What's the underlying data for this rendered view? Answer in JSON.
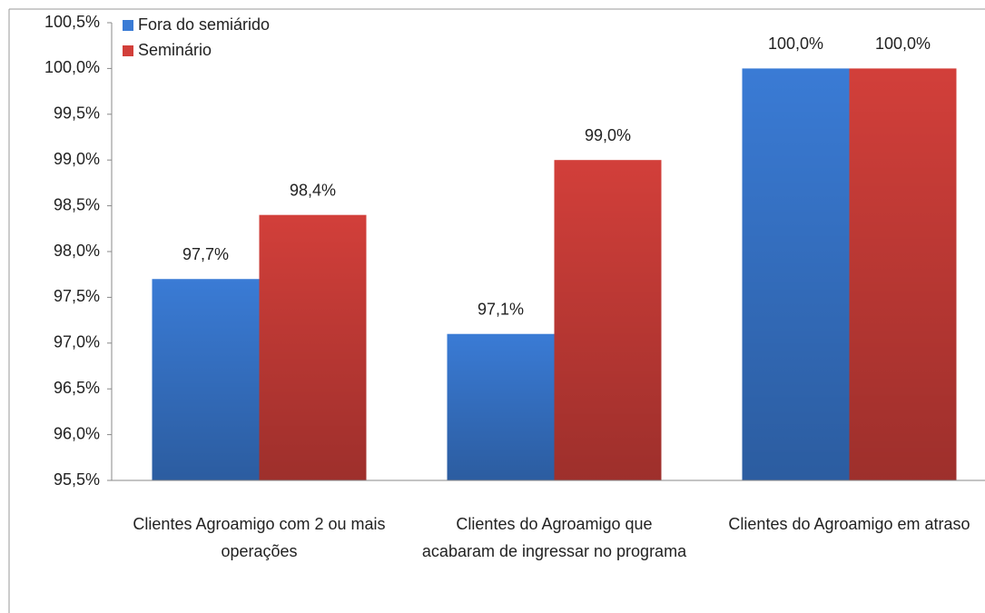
{
  "chart_data": {
    "type": "bar",
    "categories": [
      "Clientes Agroamigo com 2 ou mais operações",
      "Clientes do Agroamigo que acabaram de ingressar no programa",
      "Clientes do Agroamigo em atraso"
    ],
    "series": [
      {
        "name": "Fora do semiárido",
        "color": "#3a7bd5",
        "values": [
          97.7,
          97.1,
          100.0
        ],
        "value_labels": [
          "97,7%",
          "97,1%",
          "100,0%"
        ]
      },
      {
        "name": "Seminário",
        "color": "#d23f3a",
        "values": [
          98.4,
          99.0,
          100.0
        ],
        "value_labels": [
          "98,4%",
          "99,0%",
          "100,0%"
        ]
      }
    ],
    "ylim": [
      95.5,
      100.5
    ],
    "yticks": [
      {
        "value": 95.5,
        "label": "95,5%"
      },
      {
        "value": 96.0,
        "label": "96,0%"
      },
      {
        "value": 96.5,
        "label": "96,5%"
      },
      {
        "value": 97.0,
        "label": "97,0%"
      },
      {
        "value": 97.5,
        "label": "97,5%"
      },
      {
        "value": 98.0,
        "label": "98,0%"
      },
      {
        "value": 98.5,
        "label": "98,5%"
      },
      {
        "value": 99.0,
        "label": "99,0%"
      },
      {
        "value": 99.5,
        "label": "99,5%"
      },
      {
        "value": 100.0,
        "label": "100,0%"
      },
      {
        "value": 100.5,
        "label": "100,5%"
      }
    ],
    "legend": "top-left"
  }
}
